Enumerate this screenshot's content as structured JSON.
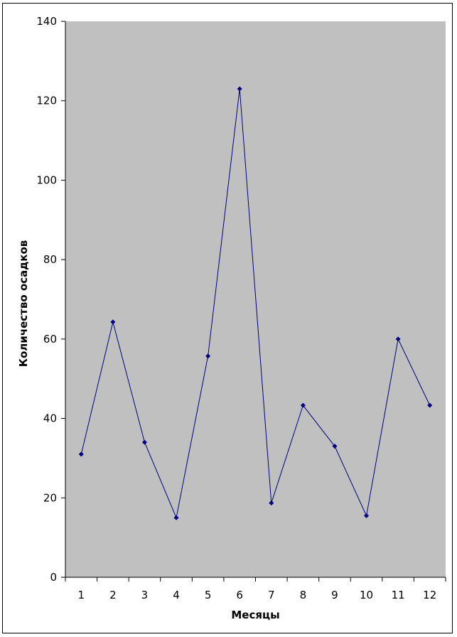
{
  "chart_data": {
    "type": "line",
    "title": "",
    "xlabel": "Месяцы",
    "ylabel": "Количество осадков",
    "categories": [
      "1",
      "2",
      "3",
      "4",
      "5",
      "6",
      "7",
      "8",
      "9",
      "10",
      "11",
      "12"
    ],
    "series": [
      {
        "values": [
          31,
          64.3,
          34,
          15,
          55.7,
          123,
          18.7,
          43.3,
          33,
          15.5,
          60,
          43.3
        ]
      }
    ],
    "ylim": [
      0,
      140
    ],
    "yticks": [
      "0",
      "20",
      "40",
      "60",
      "80",
      "100",
      "120",
      "140"
    ],
    "grid": false,
    "legend": "none",
    "colors": {
      "plot_background": "#c0c0c0",
      "line": "#000080",
      "marker": "#000080"
    }
  }
}
